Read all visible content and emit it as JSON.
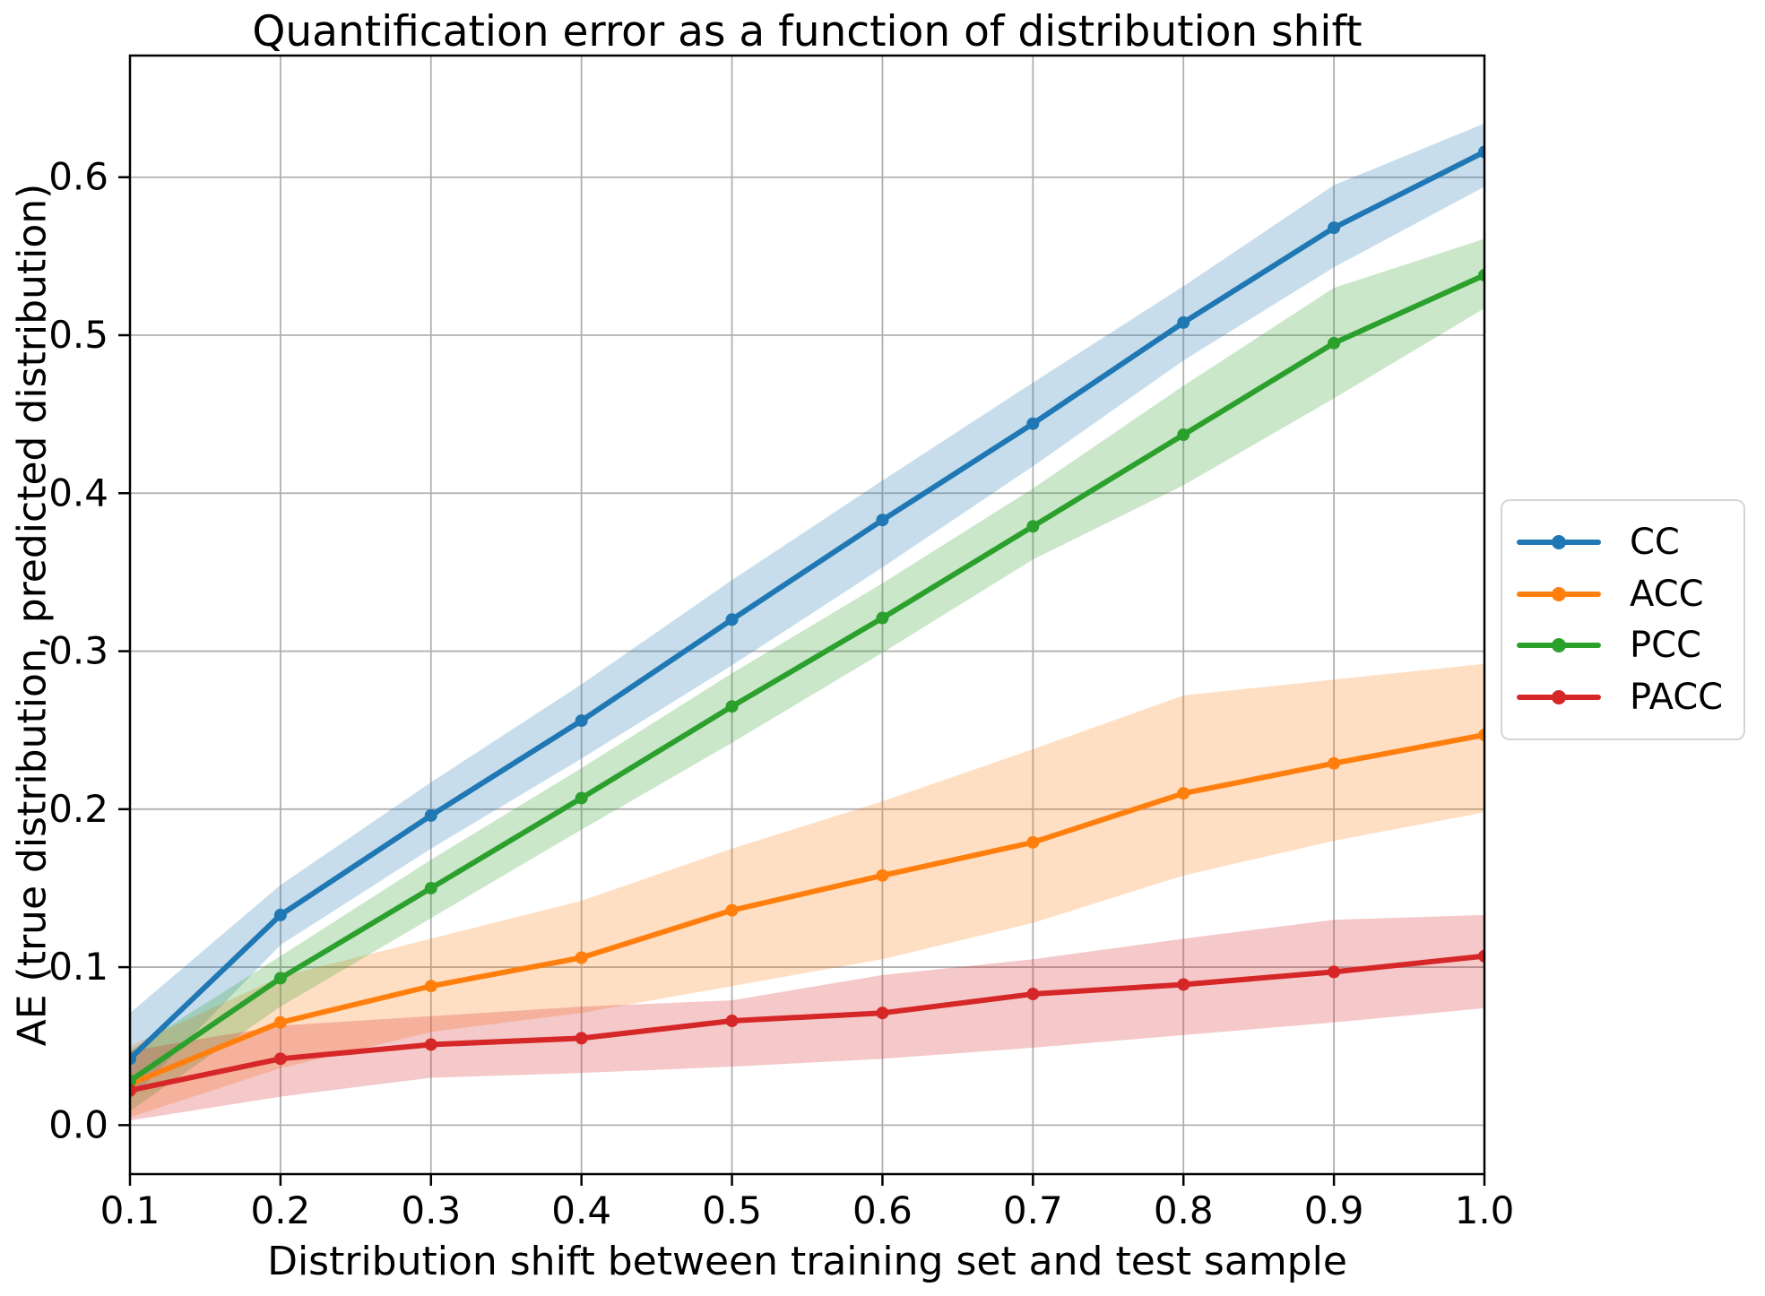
{
  "figure": {
    "title": "Quantification error as a function of distribution shift",
    "xlabel": "Distribution shift between training set and test sample",
    "ylabel": "AE (true distribution, predicted distribution)"
  },
  "chart_data": {
    "type": "line",
    "title": "Quantification error as a function of distribution shift",
    "xlabel": "Distribution shift between training set and test sample",
    "ylabel": "AE (true distribution, predicted distribution)",
    "grid": true,
    "grid_color": "#b0b0b0",
    "axes_color": "#000000",
    "background_color": "#ffffff",
    "band_opacity": 0.25,
    "legend_position": "center right outside",
    "xlim": [
      0.1,
      1.0
    ],
    "ylim": [
      -0.031,
      0.677
    ],
    "xticks": [
      "0.1",
      "0.2",
      "0.3",
      "0.4",
      "0.5",
      "0.6",
      "0.7",
      "0.8",
      "0.9",
      "1.0"
    ],
    "yticks": [
      "0.0",
      "0.1",
      "0.2",
      "0.3",
      "0.4",
      "0.5",
      "0.6"
    ],
    "x": [
      0.1,
      0.2,
      0.3,
      0.4,
      0.5,
      0.6,
      0.7,
      0.8,
      0.9,
      1.0
    ],
    "series": [
      {
        "name": "CC",
        "color": "#1f77b4",
        "values": [
          0.042,
          0.133,
          0.196,
          0.256,
          0.32,
          0.383,
          0.444,
          0.508,
          0.568,
          0.616
        ],
        "band_lower": [
          0.016,
          0.114,
          0.175,
          0.232,
          0.291,
          0.353,
          0.417,
          0.484,
          0.543,
          0.594
        ],
        "band_upper": [
          0.071,
          0.152,
          0.217,
          0.279,
          0.345,
          0.408,
          0.47,
          0.531,
          0.595,
          0.634
        ]
      },
      {
        "name": "ACC",
        "color": "#ff7f0e",
        "values": [
          0.026,
          0.065,
          0.088,
          0.106,
          0.136,
          0.158,
          0.179,
          0.21,
          0.229,
          0.247
        ],
        "band_lower": [
          0.005,
          0.036,
          0.059,
          0.071,
          0.088,
          0.105,
          0.128,
          0.158,
          0.18,
          0.198
        ],
        "band_upper": [
          0.05,
          0.094,
          0.118,
          0.142,
          0.175,
          0.205,
          0.238,
          0.272,
          0.282,
          0.292
        ]
      },
      {
        "name": "PCC",
        "color": "#2ca02c",
        "values": [
          0.028,
          0.093,
          0.15,
          0.207,
          0.265,
          0.321,
          0.379,
          0.437,
          0.495,
          0.538
        ],
        "band_lower": [
          0.009,
          0.075,
          0.131,
          0.187,
          0.242,
          0.299,
          0.358,
          0.405,
          0.46,
          0.517
        ],
        "band_upper": [
          0.047,
          0.107,
          0.168,
          0.226,
          0.286,
          0.343,
          0.403,
          0.468,
          0.53,
          0.561
        ]
      },
      {
        "name": "PACC",
        "color": "#d62728",
        "values": [
          0.022,
          0.042,
          0.051,
          0.055,
          0.066,
          0.071,
          0.083,
          0.089,
          0.097,
          0.107
        ],
        "band_lower": [
          0.003,
          0.018,
          0.03,
          0.033,
          0.037,
          0.042,
          0.049,
          0.057,
          0.065,
          0.074
        ],
        "band_upper": [
          0.047,
          0.063,
          0.069,
          0.075,
          0.079,
          0.095,
          0.105,
          0.118,
          0.13,
          0.133
        ]
      }
    ]
  }
}
